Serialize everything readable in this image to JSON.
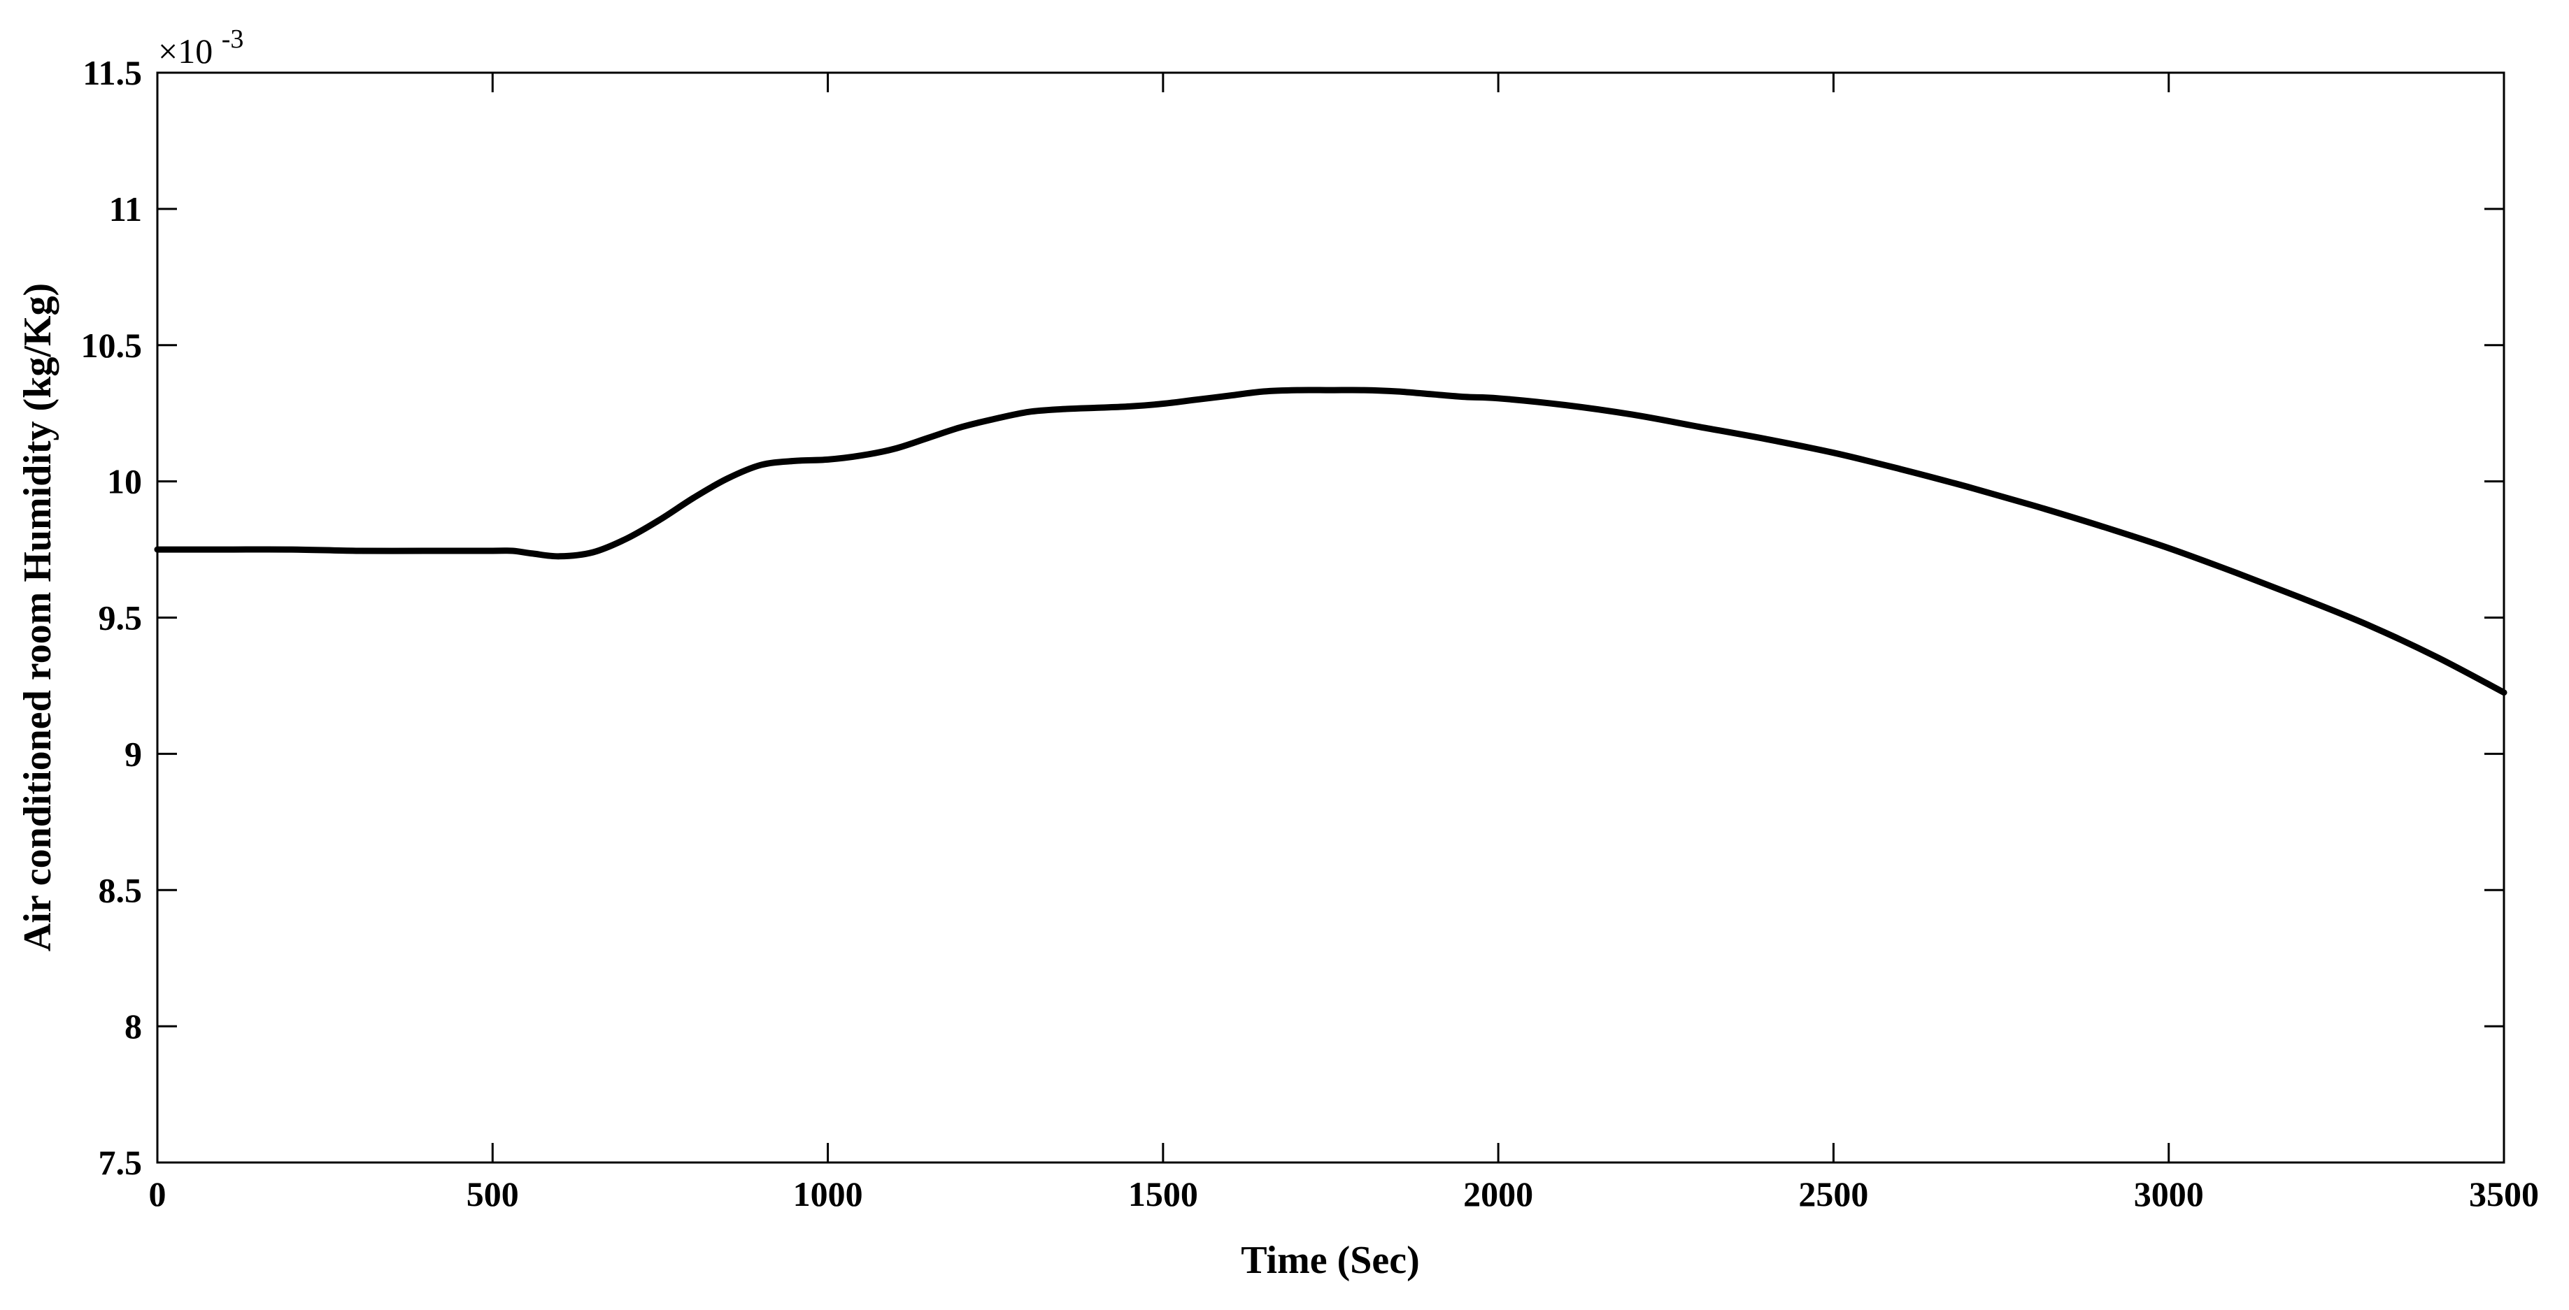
{
  "chart_data": {
    "type": "line",
    "xlabel": "Time (Sec)",
    "ylabel": "Air conditioned room Humidity (kg/Kg)",
    "y_multiplier_prefix": "×10",
    "y_multiplier_exponent": "-3",
    "xlim": [
      0,
      3500
    ],
    "ylim": [
      7.5,
      11.5
    ],
    "x_ticks": [
      0,
      500,
      1000,
      1500,
      2000,
      2500,
      3000,
      3500
    ],
    "x_tick_labels": [
      "0",
      "500",
      "1000",
      "1500",
      "2000",
      "2500",
      "3000",
      "3500"
    ],
    "y_ticks": [
      7.5,
      8,
      8.5,
      9,
      9.5,
      10,
      10.5,
      11,
      11.5
    ],
    "y_tick_labels": [
      "7.5",
      "8",
      "8.5",
      "9",
      "9.5",
      "10",
      "10.5",
      "11",
      "11.5"
    ],
    "grid": false,
    "line_color": "#000000",
    "series": [
      {
        "x": [
          0,
          100,
          200,
          300,
          400,
          500,
          530,
          560,
          600,
          650,
          700,
          750,
          800,
          850,
          900,
          950,
          1000,
          1050,
          1100,
          1150,
          1200,
          1250,
          1300,
          1350,
          1400,
          1450,
          1500,
          1550,
          1600,
          1650,
          1700,
          1750,
          1800,
          1850,
          1900,
          1950,
          2000,
          2100,
          2200,
          2300,
          2400,
          2500,
          2600,
          2700,
          2800,
          2900,
          3000,
          3100,
          3200,
          3300,
          3400,
          3500
        ],
        "y": [
          9.75,
          9.75,
          9.75,
          9.745,
          9.745,
          9.745,
          9.745,
          9.735,
          9.725,
          9.74,
          9.79,
          9.86,
          9.94,
          10.01,
          10.06,
          10.075,
          10.08,
          10.095,
          10.12,
          10.16,
          10.2,
          10.23,
          10.255,
          10.265,
          10.27,
          10.275,
          10.285,
          10.3,
          10.315,
          10.33,
          10.335,
          10.335,
          10.335,
          10.33,
          10.32,
          10.31,
          10.305,
          10.28,
          10.245,
          10.2,
          10.155,
          10.105,
          10.045,
          9.98,
          9.91,
          9.835,
          9.755,
          9.665,
          9.57,
          9.47,
          9.355,
          9.225
        ]
      }
    ]
  }
}
